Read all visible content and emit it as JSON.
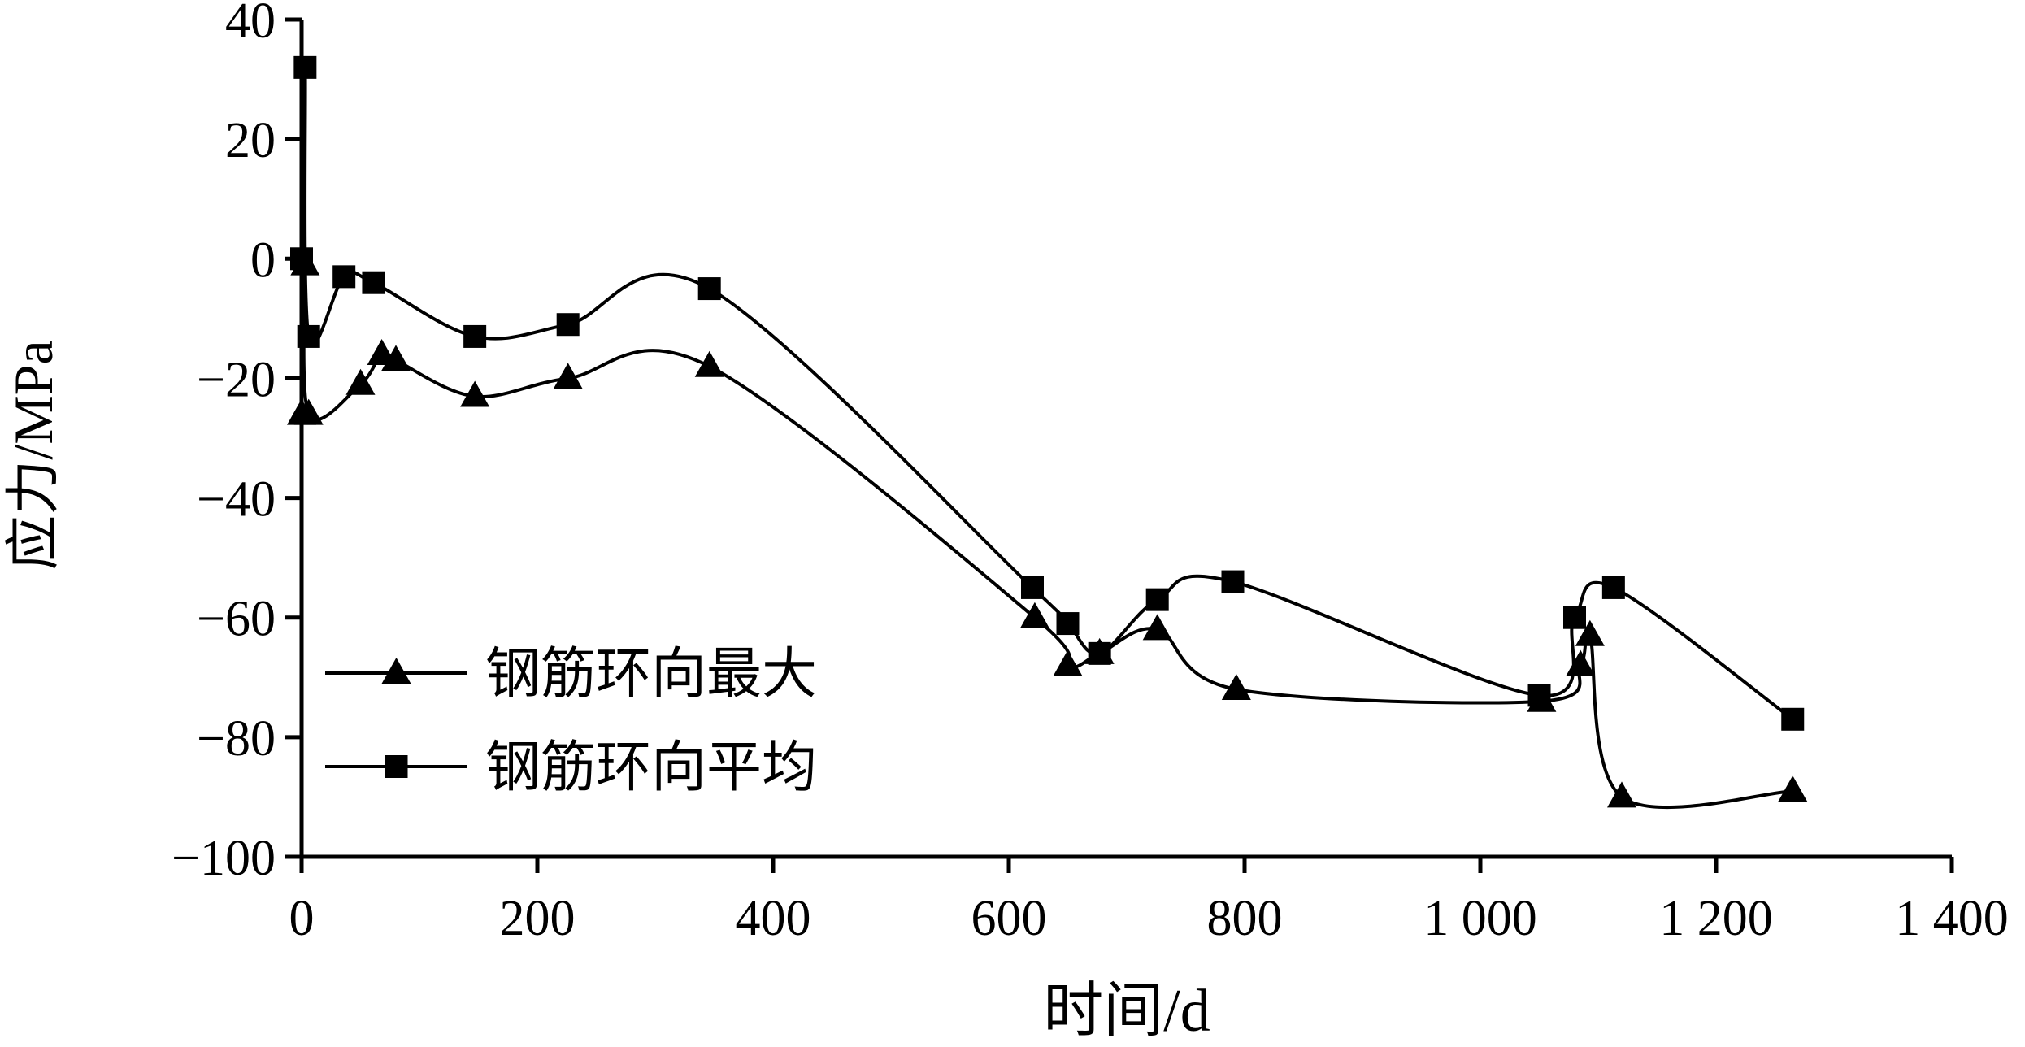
{
  "page": {
    "background": "#ffffff",
    "foreground": "#000000"
  },
  "chart_data": {
    "type": "line",
    "title": "",
    "xlabel": "时间/d",
    "ylabel": "应力/MPa",
    "xlim": [
      0,
      1400
    ],
    "ylim": [
      -100,
      40
    ],
    "xticks": [
      0,
      200,
      400,
      600,
      800,
      1000,
      1200,
      1400
    ],
    "xtick_labels": [
      "0",
      "200",
      "400",
      "600",
      "800",
      "1 000",
      "1 200",
      "1 400"
    ],
    "yticks": [
      40,
      20,
      0,
      -20,
      -40,
      -60,
      -80,
      -100
    ],
    "ytick_labels": [
      "40",
      "20",
      "0",
      "−20",
      "−40",
      "−60",
      "−80",
      "−100"
    ],
    "grid": false,
    "legend_position": "inside-left-middle",
    "line_color": "#000000",
    "series": [
      {
        "name": "钢筋环向最大",
        "marker": "triangle",
        "points": [
          [
            0,
            -26
          ],
          [
            3,
            -1
          ],
          [
            6,
            -26
          ],
          [
            50,
            -21
          ],
          [
            68,
            -16
          ],
          [
            80,
            -17
          ],
          [
            147,
            -23
          ],
          [
            226,
            -20
          ],
          [
            346,
            -18
          ],
          [
            622,
            -60
          ],
          [
            650,
            -68
          ],
          [
            677,
            -66
          ],
          [
            726,
            -62
          ],
          [
            793,
            -72
          ],
          [
            1052,
            -74
          ],
          [
            1085,
            -68
          ],
          [
            1093,
            -63
          ],
          [
            1120,
            -90
          ],
          [
            1265,
            -89
          ]
        ]
      },
      {
        "name": "钢筋环向平均",
        "marker": "square",
        "points": [
          [
            0,
            0
          ],
          [
            3,
            32
          ],
          [
            6,
            -13
          ],
          [
            36,
            -3
          ],
          [
            61,
            -4
          ],
          [
            147,
            -13
          ],
          [
            226,
            -11
          ],
          [
            346,
            -5
          ],
          [
            620,
            -55
          ],
          [
            650,
            -61
          ],
          [
            677,
            -66
          ],
          [
            726,
            -57
          ],
          [
            790,
            -54
          ],
          [
            1050,
            -73
          ],
          [
            1080,
            -60
          ],
          [
            1113,
            -55
          ],
          [
            1265,
            -77
          ]
        ]
      }
    ]
  }
}
